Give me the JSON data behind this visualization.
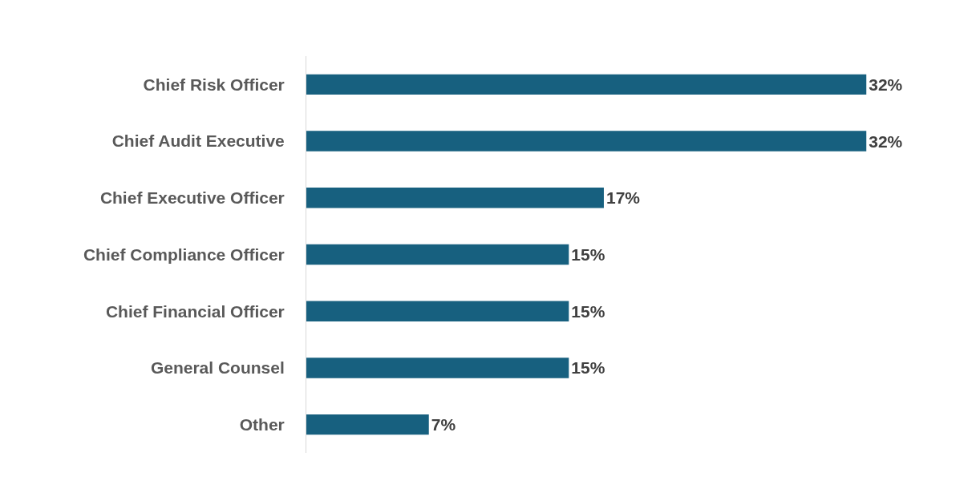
{
  "chart_data": {
    "type": "bar",
    "orientation": "horizontal",
    "categories": [
      "Chief Risk Officer",
      "Chief Audit Executive",
      "Chief Executive Officer",
      "Chief Compliance Officer",
      "Chief Financial Officer",
      "General Counsel",
      "Other"
    ],
    "values": [
      32,
      32,
      17,
      15,
      15,
      15,
      7
    ],
    "value_labels": [
      "32%",
      "32%",
      "17%",
      "15%",
      "15%",
      "15%",
      "7%"
    ],
    "color": "#17607f",
    "grid": false,
    "tick_labels": "y"
  }
}
